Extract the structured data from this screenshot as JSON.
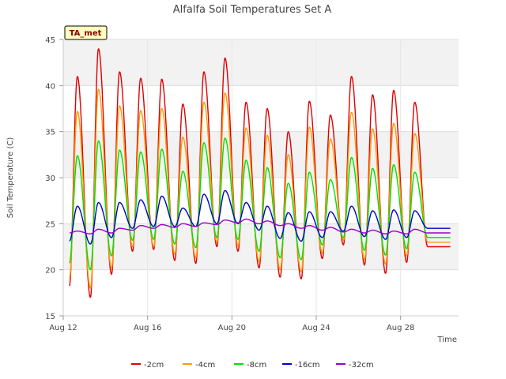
{
  "chart_data": {
    "type": "line",
    "title": "Alfalfa Soil Temperatures Set A",
    "xlabel": "Time",
    "ylabel": "Soil Temperature (C)",
    "badge": "TA_met",
    "x_unit": "day of August (fractional)",
    "xlim": [
      12,
      30.75
    ],
    "ylim": [
      15,
      45
    ],
    "x_ticks": [
      {
        "value": 12,
        "label": "Aug 12"
      },
      {
        "value": 16,
        "label": "Aug 16"
      },
      {
        "value": 20,
        "label": "Aug 20"
      },
      {
        "value": 24,
        "label": "Aug 24"
      },
      {
        "value": 28,
        "label": "Aug 28"
      }
    ],
    "y_ticks": [
      15,
      20,
      25,
      30,
      35,
      40,
      45
    ],
    "grid": true,
    "legend_position": "bottom-center",
    "daily_min_max": {
      "days": [
        12,
        13,
        14,
        15,
        16,
        17,
        18,
        19,
        20,
        21,
        22,
        23,
        24,
        25,
        26,
        27,
        28,
        29,
        30
      ],
      "series": [
        {
          "name": "-2cm",
          "color": "#e00000",
          "max": [
            41,
            44,
            41.5,
            40.8,
            40.7,
            38,
            41.5,
            43,
            38.2,
            37.5,
            35,
            38.3,
            36.8,
            41,
            39,
            39.5,
            38.2
          ],
          "min": [
            18.2,
            17,
            19.5,
            22,
            22.2,
            21,
            20.7,
            22.5,
            22,
            20.2,
            19.2,
            19,
            21.2,
            22.7,
            20.5,
            19.6,
            20.8,
            22.5
          ]
        },
        {
          "name": "-4cm",
          "color": "#ff9900",
          "max": [
            37.2,
            39.6,
            37.8,
            37.3,
            37.5,
            34.4,
            38.2,
            39.2,
            35.4,
            34.6,
            32.5,
            35.5,
            34.2,
            37.1,
            35.3,
            35.9,
            34.8
          ],
          "min": [
            19,
            18,
            20.2,
            22.5,
            22.5,
            21.7,
            21.3,
            23,
            22.6,
            20.9,
            20,
            19.8,
            21.8,
            23.2,
            21.1,
            20.6,
            21.5,
            23
          ]
        },
        {
          "name": "-8cm",
          "color": "#00e000",
          "max": [
            32.4,
            34,
            33,
            32.8,
            33.1,
            30.7,
            33.8,
            34.3,
            31.9,
            31.1,
            29.4,
            30.6,
            29.8,
            32.2,
            31,
            31.4,
            30.6
          ],
          "min": [
            20.7,
            20,
            21.5,
            23.2,
            23.3,
            22.8,
            22.4,
            23.5,
            23.3,
            22,
            21.3,
            21.1,
            22.7,
            23.5,
            22.1,
            21.6,
            22.3,
            23.5
          ]
        },
        {
          "name": "-16cm",
          "color": "#0000cc",
          "max": [
            26.9,
            27.3,
            27.3,
            27.6,
            28,
            26.7,
            28.2,
            28.6,
            27.3,
            26.9,
            26.2,
            26.3,
            26.3,
            26.9,
            26.4,
            26.5,
            26.4
          ],
          "min": [
            23.1,
            22.8,
            23.5,
            24.5,
            24.7,
            24.7,
            24.7,
            25,
            25,
            24.3,
            23.4,
            23.1,
            23.5,
            24.2,
            23.6,
            23.3,
            23.5,
            24.5
          ]
        },
        {
          "name": "-32cm",
          "color": "#9900cc",
          "max": [
            24.2,
            24.4,
            24.5,
            24.8,
            24.9,
            25,
            25.1,
            25.4,
            25.5,
            25.3,
            25,
            24.8,
            24.6,
            24.4,
            24.3,
            24.2,
            24.4
          ],
          "min": [
            24,
            23.9,
            24,
            24.3,
            24.5,
            24.6,
            24.7,
            24.9,
            25.1,
            25,
            24.8,
            24.5,
            24.3,
            24.1,
            24,
            23.9,
            23.9,
            24
          ]
        }
      ]
    }
  }
}
